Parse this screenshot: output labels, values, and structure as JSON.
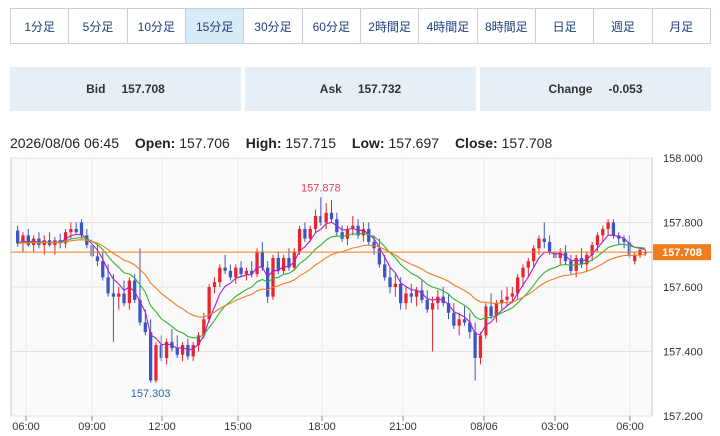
{
  "timeframes": [
    "1分足",
    "5分足",
    "10分足",
    "15分足",
    "30分足",
    "60分足",
    "2時間足",
    "4時間足",
    "8時間足",
    "日足",
    "週足",
    "月足"
  ],
  "active_timeframe": "15分足",
  "quotes": {
    "bid_label": "Bid",
    "bid": "157.708",
    "ask_label": "Ask",
    "ask": "157.732",
    "change_label": "Change",
    "change": "-0.053"
  },
  "ohlc": {
    "datetime": "2026/08/06 06:45",
    "open_label": "Open:",
    "open": "157.706",
    "high_label": "High:",
    "high": "157.715",
    "low_label": "Low:",
    "low": "157.697",
    "close_label": "Close:",
    "close": "157.708"
  },
  "colors": {
    "up": "#e8242f",
    "down": "#3b56c4",
    "ma_fast": "#b01cc8",
    "ma_mid": "#2db52d",
    "ma_slow": "#ef7d22",
    "price_tag": "#f07c1c",
    "high_label": "#e0405a",
    "low_label": "#2a62b0"
  },
  "chart_data": {
    "type": "candlestick",
    "x_ticks": [
      "06:00",
      "09:00",
      "12:00",
      "15:00",
      "18:00",
      "21:00",
      "08/06",
      "03:00",
      "06:00"
    ],
    "y_ticks": [
      "158.000",
      "157.800",
      "157.600",
      "157.400",
      "157.200"
    ],
    "ylim": [
      157.2,
      158.0
    ],
    "current_price": "157.708",
    "high_annotation": "157.878",
    "low_annotation": "157.303",
    "candles": [
      [
        157.775,
        157.79,
        157.725,
        157.735
      ],
      [
        157.735,
        157.77,
        157.71,
        157.76
      ],
      [
        157.76,
        157.78,
        157.725,
        157.73
      ],
      [
        157.73,
        157.76,
        157.71,
        157.75
      ],
      [
        157.75,
        157.77,
        157.72,
        157.73
      ],
      [
        157.73,
        157.76,
        157.7,
        157.745
      ],
      [
        157.745,
        157.77,
        157.725,
        157.73
      ],
      [
        157.73,
        157.755,
        157.7,
        157.745
      ],
      [
        157.745,
        157.765,
        157.72,
        157.735
      ],
      [
        157.735,
        157.78,
        157.72,
        157.77
      ],
      [
        157.77,
        157.8,
        157.75,
        157.78
      ],
      [
        157.78,
        157.8,
        157.765,
        157.77
      ],
      [
        157.8,
        157.81,
        157.75,
        157.76
      ],
      [
        157.76,
        157.78,
        157.72,
        157.73
      ],
      [
        157.73,
        157.75,
        157.685,
        157.695
      ],
      [
        157.695,
        157.73,
        157.665,
        157.68
      ],
      [
        157.68,
        157.71,
        157.62,
        157.63
      ],
      [
        157.63,
        157.67,
        157.57,
        157.58
      ],
      [
        157.58,
        157.64,
        157.43,
        157.57
      ],
      [
        157.57,
        157.6,
        157.53,
        157.58
      ],
      [
        157.58,
        157.62,
        157.54,
        157.55
      ],
      [
        157.55,
        157.63,
        157.53,
        157.62
      ],
      [
        157.62,
        157.64,
        157.55,
        157.56
      ],
      [
        157.56,
        157.72,
        157.48,
        157.49
      ],
      [
        157.49,
        157.53,
        157.45,
        157.46
      ],
      [
        157.46,
        157.5,
        157.303,
        157.31
      ],
      [
        157.31,
        157.43,
        157.303,
        157.42
      ],
      [
        157.42,
        157.45,
        157.37,
        157.38
      ],
      [
        157.38,
        157.44,
        157.36,
        157.43
      ],
      [
        157.43,
        157.47,
        157.4,
        157.41
      ],
      [
        157.41,
        157.45,
        157.38,
        157.39
      ],
      [
        157.39,
        157.43,
        157.37,
        157.42
      ],
      [
        157.42,
        157.44,
        157.375,
        157.385
      ],
      [
        157.385,
        157.43,
        157.37,
        157.42
      ],
      [
        157.42,
        157.46,
        157.4,
        157.45
      ],
      [
        157.45,
        157.52,
        157.44,
        157.5
      ],
      [
        157.5,
        157.61,
        157.49,
        157.6
      ],
      [
        157.6,
        157.63,
        157.58,
        157.615
      ],
      [
        157.615,
        157.67,
        157.6,
        157.66
      ],
      [
        157.66,
        157.7,
        157.64,
        157.65
      ],
      [
        157.65,
        157.67,
        157.62,
        157.63
      ],
      [
        157.63,
        157.67,
        157.61,
        157.66
      ],
      [
        157.66,
        157.68,
        157.63,
        157.64
      ],
      [
        157.64,
        157.66,
        157.62,
        157.65
      ],
      [
        157.65,
        157.68,
        157.63,
        157.64
      ],
      [
        157.64,
        157.72,
        157.63,
        157.71
      ],
      [
        157.71,
        157.74,
        157.65,
        157.66
      ],
      [
        157.66,
        157.68,
        157.55,
        157.57
      ],
      [
        157.57,
        157.7,
        157.56,
        157.69
      ],
      [
        157.69,
        157.71,
        157.64,
        157.65
      ],
      [
        157.65,
        157.7,
        157.64,
        157.69
      ],
      [
        157.69,
        157.72,
        157.65,
        157.66
      ],
      [
        157.66,
        157.72,
        157.65,
        157.71
      ],
      [
        157.71,
        157.79,
        157.7,
        157.78
      ],
      [
        157.78,
        157.8,
        157.74,
        157.75
      ],
      [
        157.75,
        157.79,
        157.74,
        157.78
      ],
      [
        157.78,
        157.84,
        157.77,
        157.82
      ],
      [
        157.82,
        157.878,
        157.79,
        157.8
      ],
      [
        157.8,
        157.86,
        157.78,
        157.83
      ],
      [
        157.83,
        157.87,
        157.8,
        157.81
      ],
      [
        157.81,
        157.83,
        157.76,
        157.77
      ],
      [
        157.77,
        157.79,
        157.74,
        157.75
      ],
      [
        157.75,
        157.79,
        157.73,
        157.78
      ],
      [
        157.78,
        157.82,
        157.76,
        157.79
      ],
      [
        157.79,
        157.81,
        157.75,
        157.76
      ],
      [
        157.76,
        157.8,
        157.74,
        157.78
      ],
      [
        157.78,
        157.8,
        157.73,
        157.74
      ],
      [
        157.74,
        157.76,
        157.7,
        157.72
      ],
      [
        157.72,
        157.75,
        157.66,
        157.67
      ],
      [
        157.67,
        157.7,
        157.62,
        157.63
      ],
      [
        157.63,
        157.66,
        157.58,
        157.6
      ],
      [
        157.6,
        157.64,
        157.57,
        157.61
      ],
      [
        157.61,
        157.63,
        157.53,
        157.55
      ],
      [
        157.55,
        157.6,
        157.53,
        157.58
      ],
      [
        157.58,
        157.61,
        157.55,
        157.57
      ],
      [
        157.57,
        157.6,
        157.54,
        157.59
      ],
      [
        157.59,
        157.62,
        157.55,
        157.56
      ],
      [
        157.56,
        157.59,
        157.52,
        157.53
      ],
      [
        157.53,
        157.57,
        157.4,
        157.55
      ],
      [
        157.55,
        157.59,
        157.53,
        157.57
      ],
      [
        157.57,
        157.6,
        157.54,
        157.55
      ],
      [
        157.55,
        157.58,
        157.5,
        157.52
      ],
      [
        157.52,
        157.55,
        157.47,
        157.48
      ],
      [
        157.48,
        157.52,
        157.45,
        157.5
      ],
      [
        157.5,
        157.54,
        157.48,
        157.49
      ],
      [
        157.49,
        157.52,
        157.44,
        157.46
      ],
      [
        157.46,
        157.49,
        157.31,
        157.38
      ],
      [
        157.38,
        157.46,
        157.36,
        157.45
      ],
      [
        157.45,
        157.55,
        157.44,
        157.54
      ],
      [
        157.54,
        157.58,
        157.5,
        157.51
      ],
      [
        157.51,
        157.56,
        157.49,
        157.55
      ],
      [
        157.55,
        157.59,
        157.53,
        157.56
      ],
      [
        157.56,
        157.6,
        157.54,
        157.57
      ],
      [
        157.57,
        157.6,
        157.55,
        157.58
      ],
      [
        157.58,
        157.64,
        157.56,
        157.63
      ],
      [
        157.63,
        157.67,
        157.6,
        157.66
      ],
      [
        157.66,
        157.69,
        157.63,
        157.68
      ],
      [
        157.68,
        157.73,
        157.66,
        157.72
      ],
      [
        157.72,
        157.76,
        157.7,
        157.75
      ],
      [
        157.75,
        157.8,
        157.72,
        157.74
      ],
      [
        157.74,
        157.76,
        157.7,
        157.71
      ],
      [
        157.71,
        157.73,
        157.68,
        157.69
      ],
      [
        157.69,
        157.72,
        157.67,
        157.71
      ],
      [
        157.71,
        157.73,
        157.67,
        157.68
      ],
      [
        157.68,
        157.7,
        157.64,
        157.65
      ],
      [
        157.65,
        157.7,
        157.63,
        157.69
      ],
      [
        157.69,
        157.72,
        157.66,
        157.67
      ],
      [
        157.67,
        157.71,
        157.65,
        157.7
      ],
      [
        157.7,
        157.74,
        157.68,
        157.73
      ],
      [
        157.73,
        157.77,
        157.71,
        157.76
      ],
      [
        157.76,
        157.79,
        157.74,
        157.78
      ],
      [
        157.78,
        157.81,
        157.76,
        157.8
      ],
      [
        157.8,
        157.81,
        157.75,
        157.76
      ],
      [
        157.76,
        157.77,
        157.73,
        157.75
      ],
      [
        157.75,
        157.76,
        157.72,
        157.74
      ],
      [
        157.74,
        157.76,
        157.69,
        157.7
      ],
      [
        157.68,
        157.71,
        157.67,
        157.7
      ],
      [
        157.7,
        157.72,
        157.69,
        157.715
      ],
      [
        157.706,
        157.715,
        157.697,
        157.708
      ]
    ]
  }
}
